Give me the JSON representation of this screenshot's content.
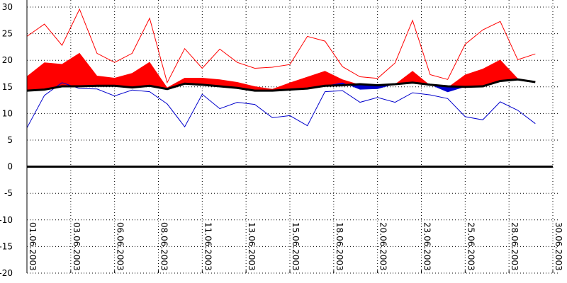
{
  "chart_data": {
    "type": "line",
    "title": "",
    "xlabel": "",
    "ylabel": "",
    "ylim": [
      -20,
      30
    ],
    "y_ticks": [
      30,
      25,
      20,
      15,
      10,
      5,
      0,
      -5,
      -10,
      -15,
      -20
    ],
    "x_tick_labels": [
      "01.06.2003",
      "03.06.2003",
      "06.06.2003",
      "08.06.2003",
      "11.06.2003",
      "13.06.2003",
      "15.06.2003",
      "18.06.2003",
      "20.06.2003",
      "23.06.2003",
      "25.06.2003",
      "28.06.2003",
      "30.06.2003"
    ],
    "x_tick_days": [
      1,
      3.5,
      6,
      8.5,
      11,
      13.5,
      16,
      18.5,
      21,
      23.5,
      26,
      28.5,
      31
    ],
    "grid": true,
    "days": [
      1,
      2,
      3,
      4,
      5,
      6,
      7,
      8,
      9,
      10,
      11,
      12,
      13,
      14,
      15,
      16,
      17,
      18,
      19,
      20,
      21,
      22,
      23,
      24,
      25,
      26,
      27,
      28,
      29,
      30,
      31
    ],
    "series": [
      {
        "values": [
          24.5,
          26.8,
          22.8,
          29.6,
          21.3,
          19.6,
          21.3,
          27.9,
          15.8,
          22.2,
          18.5,
          22.1,
          19.6,
          18.5,
          18.7,
          19.2,
          24.5,
          23.6,
          18.8,
          16.9,
          16.6,
          19.5,
          27.5,
          17.3,
          16.4,
          23.0,
          25.7,
          27.3,
          20.1,
          21.2,
          null
        ],
        "color": "#ff0000"
      },
      {
        "values": [
          17.0,
          19.6,
          19.3,
          21.4,
          17.1,
          16.7,
          17.6,
          19.7,
          14.9,
          16.7,
          16.7,
          16.4,
          15.9,
          15.1,
          14.6,
          15.8,
          16.9,
          18.0,
          16.4,
          15.4,
          15.3,
          15.5,
          18.0,
          15.3,
          14.9,
          17.3,
          18.4,
          20.1,
          16.6,
          16.0,
          null
        ],
        "color": "#ff0000"
      },
      {
        "values": [
          14.3,
          14.5,
          15.1,
          15.1,
          15.2,
          15.2,
          14.9,
          15.2,
          14.6,
          15.6,
          15.4,
          15.1,
          14.8,
          14.3,
          14.3,
          14.5,
          14.7,
          15.2,
          15.3,
          15.5,
          15.3,
          15.5,
          15.8,
          15.4,
          15.1,
          15.0,
          15.1,
          16.1,
          16.4,
          15.9,
          null
        ],
        "color": "#000000"
      },
      {
        "values": [
          14.3,
          14.5,
          15.1,
          15.1,
          15.2,
          15.2,
          14.9,
          15.2,
          14.6,
          15.6,
          15.4,
          15.1,
          14.8,
          14.3,
          14.3,
          14.5,
          14.7,
          15.2,
          15.8,
          14.5,
          14.6,
          15.5,
          15.8,
          15.4,
          14.0,
          15.0,
          15.1,
          16.1,
          16.4,
          15.9,
          null
        ],
        "color": "#0000cc"
      },
      {
        "values": [
          7.3,
          13.4,
          15.8,
          14.7,
          14.6,
          13.3,
          14.4,
          14.1,
          11.8,
          7.5,
          13.6,
          10.9,
          12.1,
          11.7,
          9.2,
          9.6,
          7.7,
          14.1,
          14.3,
          12.1,
          13.0,
          12.1,
          13.9,
          13.5,
          12.8,
          9.4,
          8.8,
          12.2,
          10.6,
          8.1,
          null
        ],
        "color": "#0000cc"
      }
    ]
  }
}
